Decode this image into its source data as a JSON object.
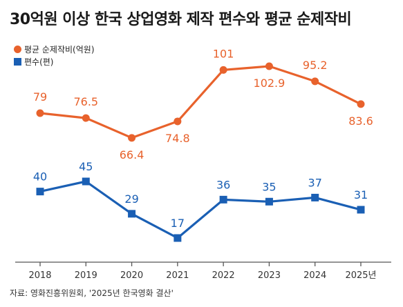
{
  "title": "30억원 이상 한국 상업영화 제작 편수와 평균 순제작비",
  "source": "자료: 영화진흥위원회, '2025년 한국영화 결산'",
  "colors": {
    "cost": "#e8622c",
    "count": "#1a5fb4",
    "axis": "#555555",
    "text": "#333333"
  },
  "chart_data": {
    "type": "line",
    "x": [
      "2018",
      "2019",
      "2020",
      "2021",
      "2022",
      "2023",
      "2024",
      "2025년"
    ],
    "series": [
      {
        "name": "평균 순제작비(억원)",
        "marker": "circle",
        "values": [
          79,
          76.5,
          66.4,
          74.8,
          101,
          102.9,
          95.2,
          83.6
        ],
        "labels": [
          "79",
          "76.5",
          "66.4",
          "74.8",
          "101",
          "102.9",
          "95.2",
          "83.6"
        ]
      },
      {
        "name": "편수(편)",
        "marker": "square",
        "values": [
          40,
          45,
          29,
          17,
          36,
          35,
          37,
          31
        ],
        "labels": [
          "40",
          "45",
          "29",
          "17",
          "36",
          "35",
          "37",
          "31"
        ]
      }
    ],
    "grid": false,
    "legend_position": "top-left"
  }
}
